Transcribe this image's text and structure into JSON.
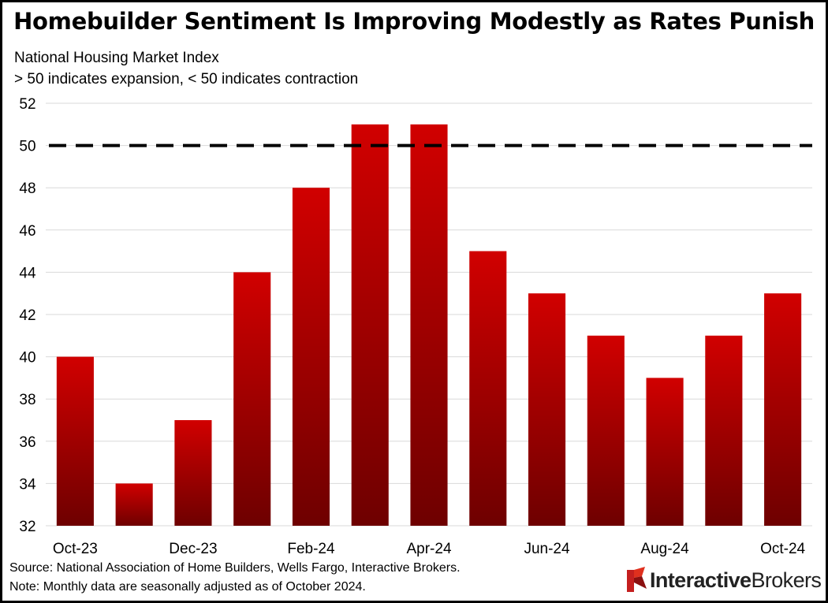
{
  "title": "Homebuilder Sentiment Is Improving Modestly as Rates Punish",
  "subtitle_line1": "National Housing Market Index",
  "subtitle_line2": "> 50 indicates expansion, < 50 indicates contraction",
  "footnote_source": "Source: National Association of Home Builders, Wells Fargo, Interactive Brokers.",
  "footnote_note": "Note: Monthly data are seasonally adjusted as of October 2024.",
  "logo": {
    "part1": "Interactive",
    "part2": "Brokers",
    "icon": "interactive-brokers-flag-icon"
  },
  "colors": {
    "bar_top": "#d10000",
    "bar_bottom": "#6e0000",
    "gridline": "#d9d9d9",
    "reference_line": "#000000"
  },
  "chart_data": {
    "type": "bar",
    "categories": [
      "Oct-23",
      "Nov-23",
      "Dec-23",
      "Jan-24",
      "Feb-24",
      "Mar-24",
      "Apr-24",
      "May-24",
      "Jun-24",
      "Jul-24",
      "Aug-24",
      "Sep-24",
      "Oct-24"
    ],
    "tick_labels": [
      "Oct-23",
      "",
      "Dec-23",
      "",
      "Feb-24",
      "",
      "Apr-24",
      "",
      "Jun-24",
      "",
      "Aug-24",
      "",
      "Oct-24"
    ],
    "values": [
      40,
      34,
      37,
      44,
      48,
      51,
      51,
      45,
      43,
      41,
      39,
      41,
      43
    ],
    "ylim": [
      32,
      52
    ],
    "yticks": [
      32,
      34,
      36,
      38,
      40,
      42,
      44,
      46,
      48,
      50,
      52
    ],
    "reference_line": {
      "value": 50,
      "style": "dashed"
    },
    "grid": true,
    "legend": false
  }
}
